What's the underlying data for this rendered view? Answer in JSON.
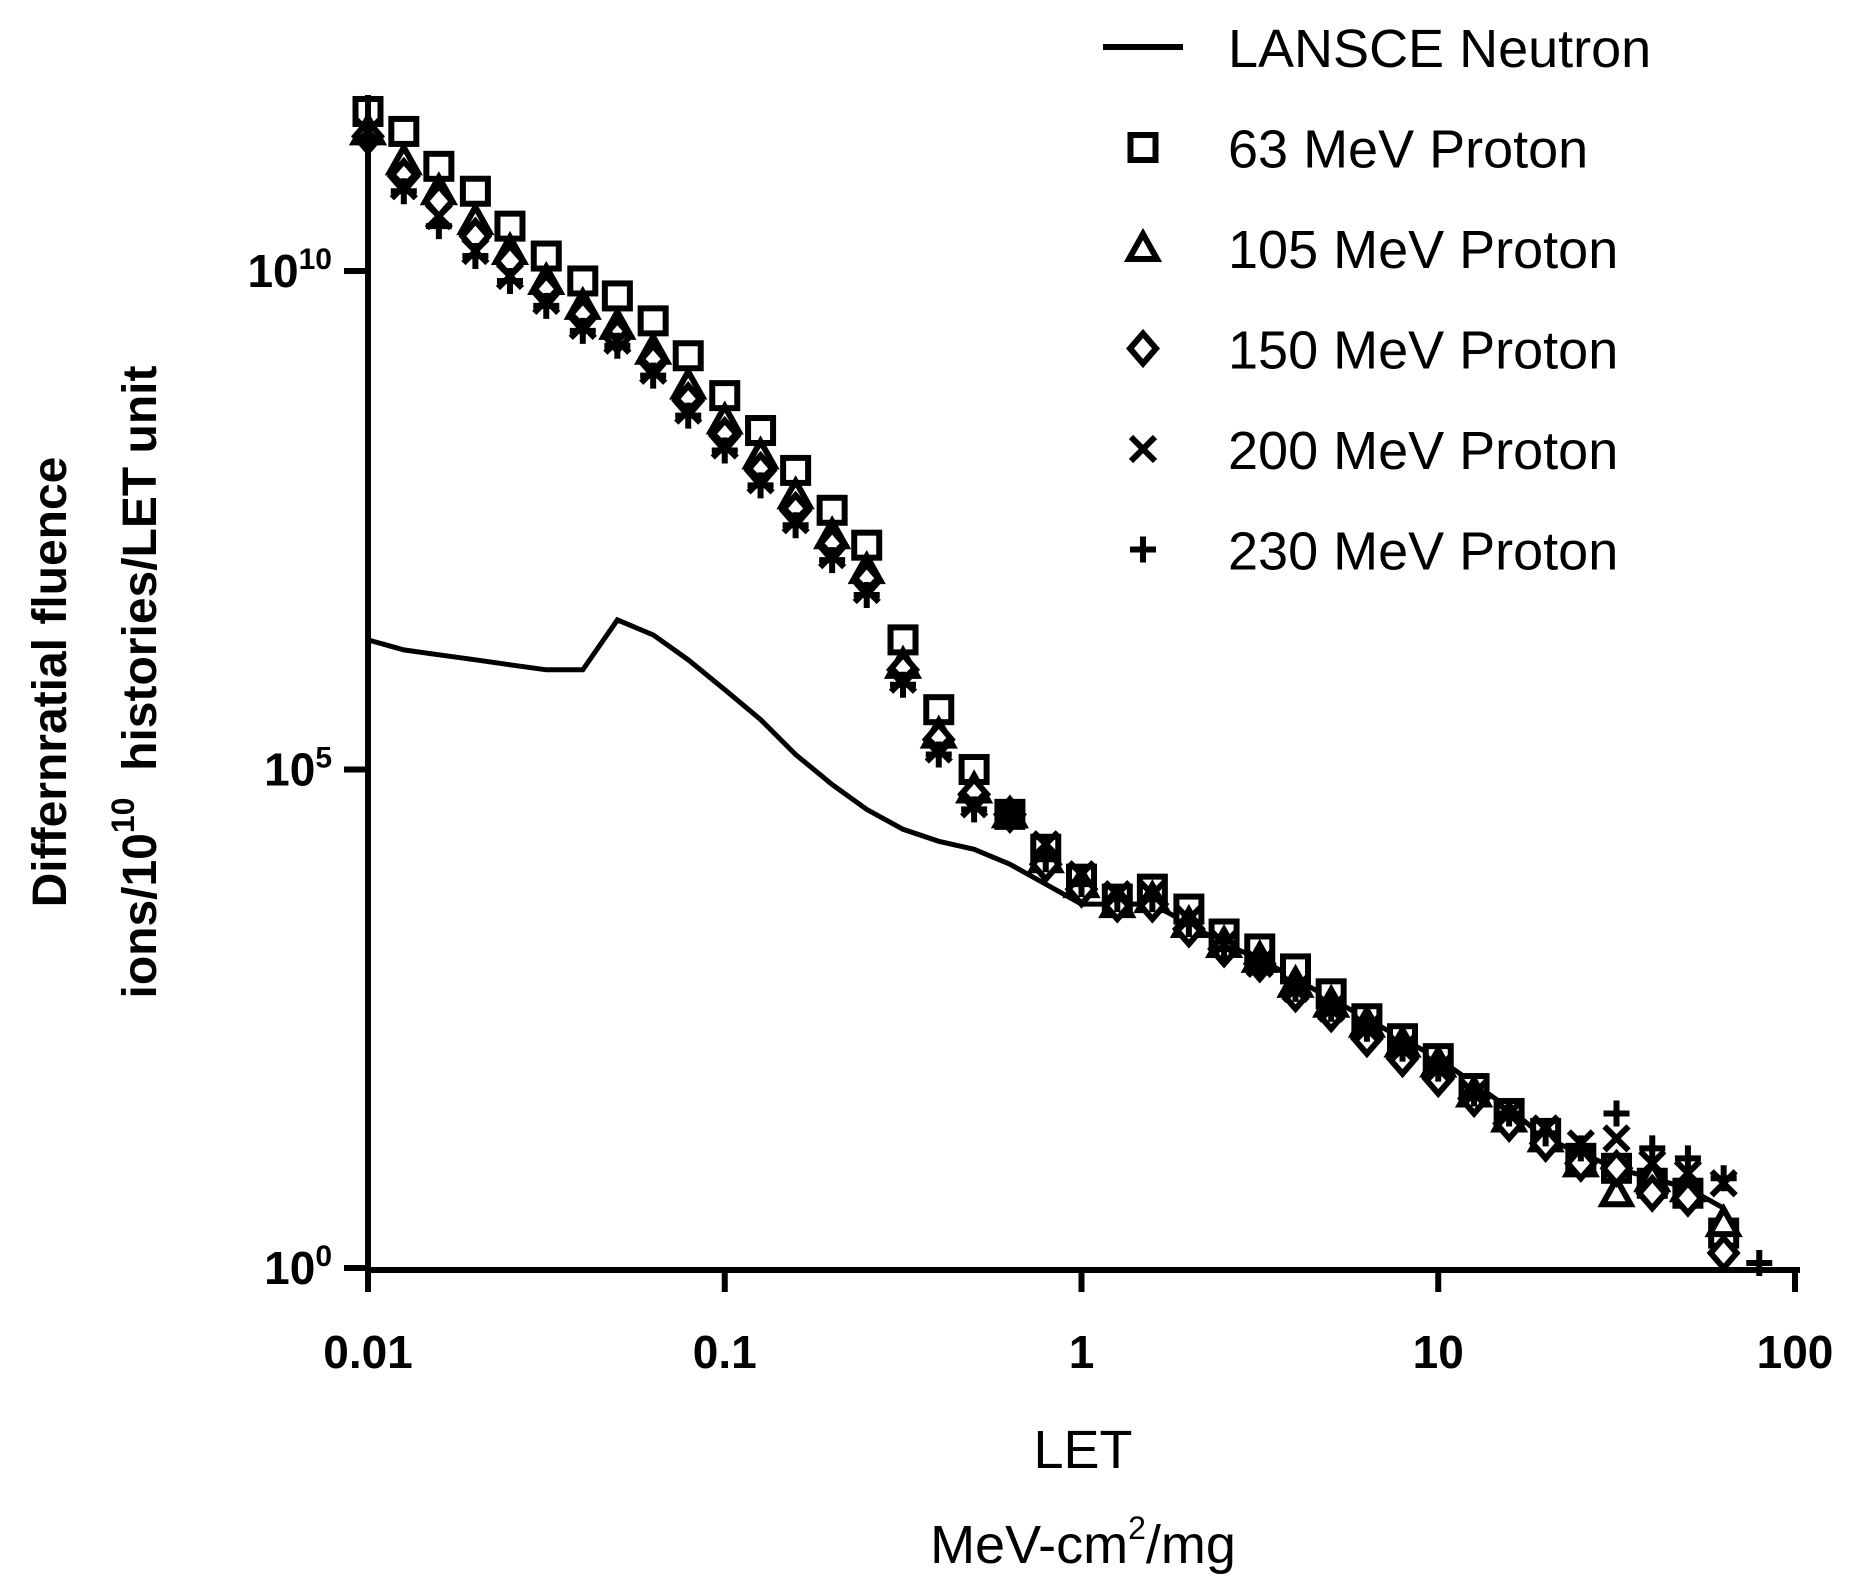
{
  "chart_data": {
    "type": "scatter",
    "title": "",
    "xlabel": "LET",
    "xlabel_unit_prefix": "MeV-cm",
    "xlabel_unit_sup": "2",
    "xlabel_unit_suffix": "/mg",
    "ylabel_line1": "Differnratial fluence",
    "ylabel_line2_prefix": "ions/10",
    "ylabel_line2_sup": "10",
    "ylabel_line2_suffix": "  histories/LET unit",
    "x_scale": "log",
    "y_scale": "log",
    "xlim": [
      0.01,
      100
    ],
    "ylim_exponent": [
      0,
      11.6
    ],
    "x_ticks": [
      {
        "value": 0.01,
        "label": "0.01"
      },
      {
        "value": 0.1,
        "label": "0.1"
      },
      {
        "value": 1,
        "label": "1"
      },
      {
        "value": 10,
        "label": "10"
      },
      {
        "value": 100,
        "label": "100"
      }
    ],
    "y_ticks": [
      {
        "exponent": 0,
        "base": "10",
        "sup": "0"
      },
      {
        "exponent": 5,
        "base": "10",
        "sup": "5"
      },
      {
        "exponent": 10,
        "base": "10",
        "sup": "10"
      }
    ],
    "legend_position": "top-right",
    "line_series": [
      {
        "name": "LANSCE Neutron",
        "marker": "line",
        "points": [
          [
            0.01,
            6.3
          ],
          [
            0.0126,
            6.2
          ],
          [
            0.0158,
            6.15
          ],
          [
            0.02,
            6.1
          ],
          [
            0.025,
            6.05
          ],
          [
            0.0316,
            6.0
          ],
          [
            0.04,
            6.0
          ],
          [
            0.05,
            6.5
          ],
          [
            0.063,
            6.35
          ],
          [
            0.079,
            6.1
          ],
          [
            0.1,
            5.8
          ],
          [
            0.126,
            5.5
          ],
          [
            0.158,
            5.15
          ],
          [
            0.2,
            4.85
          ],
          [
            0.25,
            4.6
          ],
          [
            0.316,
            4.4
          ],
          [
            0.398,
            4.28
          ],
          [
            0.5,
            4.2
          ],
          [
            0.63,
            4.05
          ],
          [
            0.794,
            3.85
          ],
          [
            1.0,
            3.65
          ],
          [
            1.26,
            3.65
          ],
          [
            1.58,
            3.65
          ],
          [
            2.0,
            3.45
          ],
          [
            2.51,
            3.25
          ],
          [
            3.16,
            3.1
          ],
          [
            3.98,
            2.9
          ],
          [
            5.01,
            2.7
          ],
          [
            6.31,
            2.5
          ],
          [
            7.94,
            2.3
          ],
          [
            10.0,
            2.1
          ],
          [
            12.6,
            1.85
          ],
          [
            15.8,
            1.6
          ],
          [
            20.0,
            1.3
          ],
          [
            25.1,
            1.15
          ],
          [
            31.6,
            1.0
          ],
          [
            39.8,
            0.9
          ],
          [
            50.1,
            0.8
          ],
          [
            63.1,
            0.6
          ]
        ]
      }
    ],
    "series": [
      {
        "name": "63 MeV Proton",
        "marker": "square",
        "points": [
          [
            0.01,
            11.6
          ],
          [
            0.0126,
            11.4
          ],
          [
            0.0158,
            11.05
          ],
          [
            0.02,
            10.8
          ],
          [
            0.025,
            10.45
          ],
          [
            0.0316,
            10.15
          ],
          [
            0.04,
            9.9
          ],
          [
            0.05,
            9.75
          ],
          [
            0.063,
            9.5
          ],
          [
            0.079,
            9.15
          ],
          [
            0.1,
            8.75
          ],
          [
            0.126,
            8.4
          ],
          [
            0.158,
            8.0
          ],
          [
            0.2,
            7.6
          ],
          [
            0.25,
            7.25
          ],
          [
            0.316,
            6.3
          ],
          [
            0.398,
            5.6
          ],
          [
            0.5,
            5.0
          ],
          [
            0.63,
            4.55
          ],
          [
            0.794,
            4.2
          ],
          [
            1.0,
            3.9
          ],
          [
            1.26,
            3.7
          ],
          [
            1.58,
            3.8
          ],
          [
            2.0,
            3.6
          ],
          [
            2.51,
            3.35
          ],
          [
            3.16,
            3.2
          ],
          [
            3.98,
            3.0
          ],
          [
            5.01,
            2.75
          ],
          [
            6.31,
            2.5
          ],
          [
            7.94,
            2.3
          ],
          [
            10.0,
            2.1
          ],
          [
            12.6,
            1.8
          ],
          [
            15.8,
            1.55
          ],
          [
            20.0,
            1.35
          ],
          [
            25.1,
            1.1
          ],
          [
            31.6,
            1.0
          ],
          [
            39.8,
            0.85
          ],
          [
            50.1,
            0.75
          ],
          [
            63.1,
            0.35
          ]
        ]
      },
      {
        "name": "105 MeV Proton",
        "marker": "triangle",
        "points": [
          [
            0.01,
            11.4
          ],
          [
            0.0126,
            11.1
          ],
          [
            0.0158,
            10.8
          ],
          [
            0.02,
            10.5
          ],
          [
            0.025,
            10.2
          ],
          [
            0.0316,
            9.9
          ],
          [
            0.04,
            9.65
          ],
          [
            0.05,
            9.45
          ],
          [
            0.063,
            9.2
          ],
          [
            0.079,
            8.85
          ],
          [
            0.1,
            8.5
          ],
          [
            0.126,
            8.15
          ],
          [
            0.158,
            7.75
          ],
          [
            0.2,
            7.35
          ],
          [
            0.25,
            7.0
          ],
          [
            0.316,
            6.05
          ],
          [
            0.398,
            5.35
          ],
          [
            0.5,
            4.8
          ],
          [
            0.63,
            4.55
          ],
          [
            0.794,
            4.1
          ],
          [
            1.0,
            3.85
          ],
          [
            1.26,
            3.65
          ],
          [
            1.58,
            3.7
          ],
          [
            2.0,
            3.45
          ],
          [
            2.51,
            3.25
          ],
          [
            3.16,
            3.1
          ],
          [
            3.98,
            2.85
          ],
          [
            5.01,
            2.65
          ],
          [
            6.31,
            2.45
          ],
          [
            7.94,
            2.25
          ],
          [
            10.0,
            2.05
          ],
          [
            12.6,
            1.75
          ],
          [
            15.8,
            1.5
          ],
          [
            20.0,
            1.3
          ],
          [
            25.1,
            1.05
          ],
          [
            31.6,
            0.75
          ],
          [
            39.8,
            0.9
          ],
          [
            50.1,
            0.8
          ],
          [
            63.1,
            0.45
          ]
        ]
      },
      {
        "name": "150 MeV Proton",
        "marker": "diamond",
        "points": [
          [
            0.01,
            11.35
          ],
          [
            0.0126,
            10.95
          ],
          [
            0.0158,
            10.7
          ],
          [
            0.02,
            10.35
          ],
          [
            0.025,
            10.1
          ],
          [
            0.0316,
            9.8
          ],
          [
            0.04,
            9.55
          ],
          [
            0.05,
            9.35
          ],
          [
            0.063,
            9.1
          ],
          [
            0.079,
            8.7
          ],
          [
            0.1,
            8.35
          ],
          [
            0.126,
            8.0
          ],
          [
            0.158,
            7.6
          ],
          [
            0.2,
            7.25
          ],
          [
            0.25,
            6.9
          ],
          [
            0.316,
            6.0
          ],
          [
            0.398,
            5.3
          ],
          [
            0.5,
            4.75
          ],
          [
            0.63,
            4.55
          ],
          [
            0.794,
            4.05
          ],
          [
            1.0,
            3.8
          ],
          [
            1.26,
            3.65
          ],
          [
            1.58,
            3.65
          ],
          [
            2.0,
            3.4
          ],
          [
            2.51,
            3.2
          ],
          [
            3.16,
            3.05
          ],
          [
            3.98,
            2.75
          ],
          [
            5.01,
            2.55
          ],
          [
            6.31,
            2.3
          ],
          [
            7.94,
            2.1
          ],
          [
            10.0,
            1.9
          ],
          [
            12.6,
            1.7
          ],
          [
            15.8,
            1.45
          ],
          [
            20.0,
            1.25
          ],
          [
            25.1,
            1.05
          ],
          [
            31.6,
            1.0
          ],
          [
            39.8,
            0.75
          ],
          [
            50.1,
            0.7
          ],
          [
            63.1,
            0.15
          ]
        ]
      },
      {
        "name": "200 MeV Proton",
        "marker": "x",
        "points": [
          [
            0.01,
            11.4
          ],
          [
            0.0126,
            10.85
          ],
          [
            0.0158,
            10.55
          ],
          [
            0.02,
            10.2
          ],
          [
            0.025,
            9.95
          ],
          [
            0.0316,
            9.7
          ],
          [
            0.04,
            9.45
          ],
          [
            0.05,
            9.3
          ],
          [
            0.063,
            9.0
          ],
          [
            0.079,
            8.6
          ],
          [
            0.1,
            8.25
          ],
          [
            0.126,
            7.9
          ],
          [
            0.158,
            7.5
          ],
          [
            0.2,
            7.15
          ],
          [
            0.25,
            6.8
          ],
          [
            0.316,
            5.9
          ],
          [
            0.398,
            5.2
          ],
          [
            0.5,
            4.65
          ],
          [
            0.63,
            4.55
          ],
          [
            0.794,
            4.25
          ],
          [
            1.0,
            3.95
          ],
          [
            1.26,
            3.75
          ],
          [
            1.58,
            3.75
          ],
          [
            2.0,
            3.5
          ],
          [
            2.51,
            3.25
          ],
          [
            3.16,
            3.05
          ],
          [
            3.98,
            2.8
          ],
          [
            5.01,
            2.6
          ],
          [
            6.31,
            2.4
          ],
          [
            7.94,
            2.2
          ],
          [
            10.0,
            2.0
          ],
          [
            12.6,
            1.75
          ],
          [
            15.8,
            1.55
          ],
          [
            20.0,
            1.4
          ],
          [
            25.1,
            1.25
          ],
          [
            31.6,
            1.3
          ],
          [
            39.8,
            1.05
          ],
          [
            50.1,
            0.95
          ],
          [
            63.1,
            0.85
          ]
        ]
      },
      {
        "name": "230 MeV Proton",
        "marker": "plus",
        "points": [
          [
            0.01,
            11.3
          ],
          [
            0.0126,
            10.8
          ],
          [
            0.0158,
            10.45
          ],
          [
            0.02,
            10.15
          ],
          [
            0.025,
            9.9
          ],
          [
            0.0316,
            9.65
          ],
          [
            0.04,
            9.4
          ],
          [
            0.05,
            9.25
          ],
          [
            0.063,
            8.95
          ],
          [
            0.079,
            8.55
          ],
          [
            0.1,
            8.2
          ],
          [
            0.126,
            7.85
          ],
          [
            0.158,
            7.45
          ],
          [
            0.2,
            7.1
          ],
          [
            0.25,
            6.75
          ],
          [
            0.316,
            5.85
          ],
          [
            0.398,
            5.15
          ],
          [
            0.5,
            4.6
          ],
          [
            0.63,
            4.55
          ],
          [
            0.794,
            4.1
          ],
          [
            1.0,
            3.85
          ],
          [
            1.26,
            3.7
          ],
          [
            1.58,
            3.7
          ],
          [
            2.0,
            3.45
          ],
          [
            2.51,
            3.2
          ],
          [
            3.16,
            3.05
          ],
          [
            3.98,
            2.8
          ],
          [
            5.01,
            2.6
          ],
          [
            6.31,
            2.4
          ],
          [
            7.94,
            2.2
          ],
          [
            10.0,
            2.0
          ],
          [
            12.6,
            1.75
          ],
          [
            15.8,
            1.55
          ],
          [
            20.0,
            1.35
          ],
          [
            25.1,
            1.2
          ],
          [
            31.6,
            1.55
          ],
          [
            39.8,
            1.2
          ],
          [
            50.1,
            1.1
          ],
          [
            63.1,
            0.9
          ],
          [
            79.4,
            0.05
          ]
        ]
      }
    ]
  }
}
